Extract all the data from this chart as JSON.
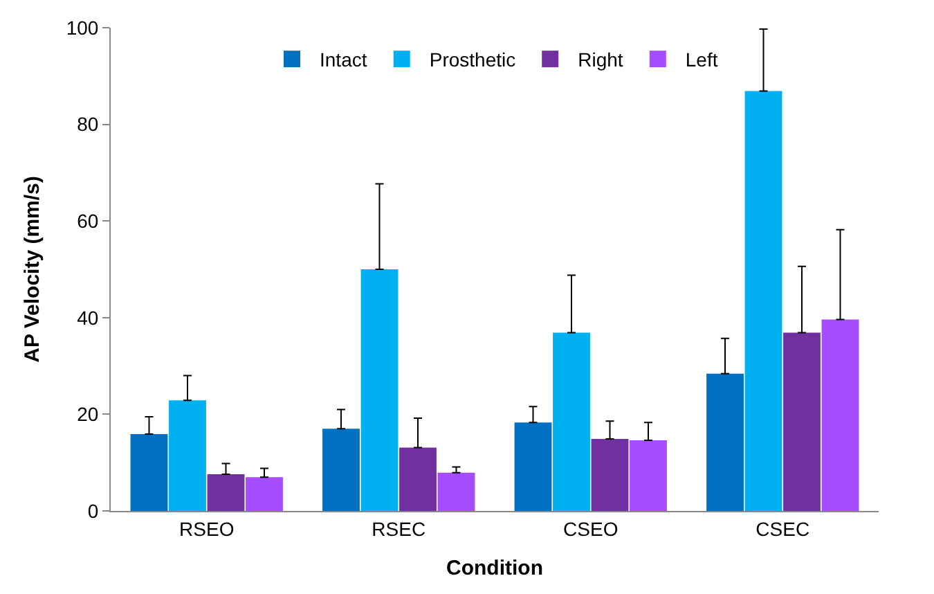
{
  "chart_data": {
    "type": "bar",
    "xlabel": "Condition",
    "ylabel": "AP Velocity (mm/s)",
    "categories": [
      "RSEO",
      "RSEC",
      "CSEO",
      "CSEC"
    ],
    "series": [
      {
        "name": "Intact",
        "color": "#0070c0",
        "values": [
          15.9,
          17,
          18.3,
          28.4
        ],
        "errors": [
          [
            15.9,
            19.5
          ],
          [
            17,
            21
          ],
          [
            18.3,
            21.6
          ],
          [
            28.4,
            35.7
          ]
        ]
      },
      {
        "name": "Prosthetic",
        "color": "#00b0f0",
        "values": [
          22.9,
          50,
          36.9,
          86.9
        ],
        "errors": [
          [
            22.9,
            28
          ],
          [
            50,
            67.7
          ],
          [
            36.9,
            48.8
          ],
          [
            86.9,
            99.7
          ]
        ]
      },
      {
        "name": "Right",
        "color": "#7030a0",
        "values": [
          7.6,
          13.1,
          14.9,
          36.9
        ],
        "errors": [
          [
            7.6,
            9.8
          ],
          [
            13.1,
            19.2
          ],
          [
            14.9,
            18.6
          ],
          [
            36.9,
            50.6
          ]
        ]
      },
      {
        "name": "Left",
        "color": "#a64dff",
        "values": [
          7,
          7.9,
          14.6,
          39.6
        ],
        "errors": [
          [
            7,
            8.8
          ],
          [
            7.9,
            9.1
          ],
          [
            14.6,
            18.3
          ],
          [
            39.6,
            58.2
          ]
        ]
      }
    ],
    "ylim": [
      0,
      100
    ],
    "yticks": [
      0,
      20,
      40,
      60,
      80,
      100
    ],
    "grid": false,
    "legend": "top"
  }
}
